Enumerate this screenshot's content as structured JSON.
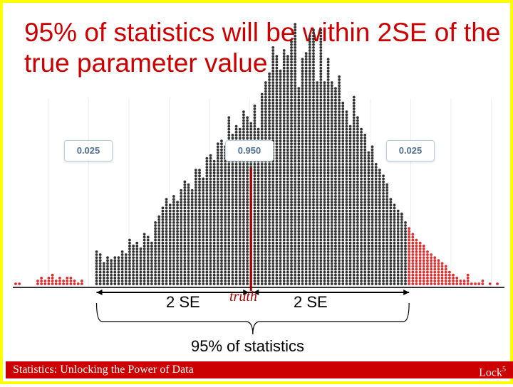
{
  "title": "95% of statistics will be within 2SE of the true parameter value",
  "badges": {
    "left": "0.025",
    "center": "0.950",
    "right": "0.025"
  },
  "labels": {
    "left_se": "2 SE",
    "right_se": "2 SE",
    "truth": "truth",
    "brace": "95% of statistics"
  },
  "footer": {
    "left": "Statistics: Unlocking the Power of Data",
    "right_prefix": "Lock",
    "right_sup": "5"
  },
  "colors": {
    "title": "#cc0000",
    "dots": "#333333",
    "tails": "#e03030",
    "footer_bg": "#cc0000",
    "border": "#ffff00"
  },
  "chart_data": {
    "type": "dotplot",
    "counts": [
      1,
      1,
      0,
      0,
      0,
      0,
      2,
      3,
      2,
      3,
      4,
      2,
      3,
      2,
      3,
      3,
      2,
      1,
      2,
      0,
      0,
      0,
      12,
      11,
      8,
      10,
      9,
      10,
      10,
      12,
      11,
      16,
      14,
      15,
      13,
      18,
      17,
      15,
      22,
      24,
      27,
      30,
      28,
      31,
      29,
      33,
      36,
      35,
      33,
      40,
      40,
      37,
      44,
      45,
      43,
      49,
      50,
      48,
      58,
      52,
      55,
      54,
      60,
      58,
      56,
      62,
      54,
      66,
      70,
      73,
      82,
      79,
      74,
      81,
      79,
      84,
      90,
      68,
      78,
      80,
      86,
      88,
      70,
      88,
      70,
      78,
      70,
      68,
      72,
      63,
      60,
      55,
      65,
      58,
      54,
      52,
      46,
      48,
      42,
      40,
      38,
      35,
      30,
      28,
      26,
      25,
      22,
      20,
      18,
      16,
      15,
      14,
      12,
      11,
      10,
      9,
      8,
      7,
      5,
      4,
      3,
      2,
      2,
      4,
      1,
      1,
      1,
      2,
      0,
      1,
      0,
      1
    ],
    "lower_cut_index": 22,
    "upper_cut_index": 107,
    "truth_index": 64
  }
}
